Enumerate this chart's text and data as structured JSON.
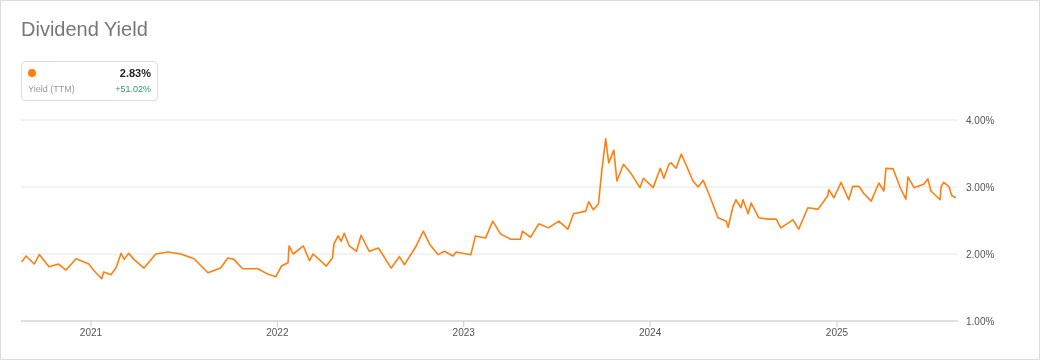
{
  "chart_data": {
    "type": "line",
    "title": "Dividend Yield",
    "annotations": [
      "2.83%",
      "Yield (TTM)",
      "+51.02%"
    ],
    "x": [
      "2020-08-18",
      "2020-08-27",
      "2020-09-12",
      "2020-09-22",
      "2020-10-11",
      "2020-10-30",
      "2020-11-13",
      "2020-12-03",
      "2020-12-28",
      "2021-01-07",
      "2021-01-22",
      "2021-01-26",
      "2021-02-09",
      "2021-02-19",
      "2021-03-01",
      "2021-03-07",
      "2021-03-16",
      "2021-03-26",
      "2021-04-15",
      "2021-05-08",
      "2021-06-01",
      "2021-06-26",
      "2021-07-22",
      "2021-08-18",
      "2021-09-12",
      "2021-09-26",
      "2021-10-08",
      "2021-10-25",
      "2021-11-24",
      "2021-12-13",
      "2021-12-29",
      "2022-01-09",
      "2022-01-22",
      "2022-01-24",
      "2022-02-01",
      "2022-02-21",
      "2022-03-05",
      "2022-03-12",
      "2022-04-07",
      "2022-04-19",
      "2022-04-22",
      "2022-04-30",
      "2022-05-06",
      "2022-05-12",
      "2022-05-22",
      "2022-06-05",
      "2022-06-14",
      "2022-06-30",
      "2022-07-18",
      "2022-08-12",
      "2022-08-28",
      "2022-09-07",
      "2022-09-30",
      "2022-10-14",
      "2022-10-26",
      "2022-11-12",
      "2022-11-24",
      "2022-12-11",
      "2022-12-17",
      "2023-01-15",
      "2023-01-24",
      "2023-02-13",
      "2023-02-27",
      "2023-03-14",
      "2023-04-03",
      "2023-04-22",
      "2023-04-26",
      "2023-05-12",
      "2023-05-28",
      "2023-06-16",
      "2023-07-06",
      "2023-07-24",
      "2023-08-04",
      "2023-08-28",
      "2023-09-03",
      "2023-09-12",
      "2023-09-22",
      "2023-09-28",
      "2023-10-06",
      "2023-10-12",
      "2023-10-22",
      "2023-10-28",
      "2023-11-10",
      "2023-11-24",
      "2023-12-12",
      "2023-12-19",
      "2024-01-07",
      "2024-01-21",
      "2024-01-28",
      "2024-02-07",
      "2024-02-11",
      "2024-02-21",
      "2024-03-02",
      "2024-03-11",
      "2024-03-25",
      "2024-04-04",
      "2024-04-14",
      "2024-04-25",
      "2024-05-13",
      "2024-05-29",
      "2024-06-02",
      "2024-06-11",
      "2024-06-17",
      "2024-06-27",
      "2024-07-01",
      "2024-07-11",
      "2024-07-17",
      "2024-08-01",
      "2024-08-19",
      "2024-09-04",
      "2024-09-13",
      "2024-10-07",
      "2024-10-18",
      "2024-11-05",
      "2024-11-25",
      "2024-12-14",
      "2024-12-16",
      "2024-12-26",
      "2025-01-09",
      "2025-01-24",
      "2025-02-01",
      "2025-02-13",
      "2025-02-23",
      "2025-03-09",
      "2025-03-24",
      "2025-04-03",
      "2025-04-07",
      "2025-04-21",
      "2025-05-06",
      "2025-05-16",
      "2025-05-20",
      "2025-06-01",
      "2025-06-20",
      "2025-06-28",
      "2025-07-04",
      "2025-07-22",
      "2025-07-24",
      "2025-07-29",
      "2025-08-08",
      "2025-08-14",
      "2025-08-22"
    ],
    "series": [
      {
        "color": "#ff7f0e",
        "values": [
          1.88,
          1.97,
          1.85,
          1.99,
          1.81,
          1.85,
          1.76,
          1.93,
          1.85,
          1.75,
          1.63,
          1.73,
          1.69,
          1.79,
          2.01,
          1.92,
          2.01,
          1.92,
          1.79,
          2.0,
          2.03,
          2.0,
          1.93,
          1.72,
          1.79,
          1.94,
          1.92,
          1.78,
          1.78,
          1.7,
          1.66,
          1.82,
          1.87,
          2.12,
          2.0,
          2.12,
          1.9,
          2.0,
          1.82,
          1.94,
          2.15,
          2.27,
          2.19,
          2.31,
          2.12,
          2.04,
          2.28,
          2.04,
          2.09,
          1.79,
          1.96,
          1.84,
          2.12,
          2.34,
          2.15,
          1.99,
          2.04,
          1.97,
          2.03,
          1.99,
          2.27,
          2.24,
          2.49,
          2.3,
          2.22,
          2.22,
          2.34,
          2.25,
          2.45,
          2.39,
          2.49,
          2.37,
          2.6,
          2.64,
          2.78,
          2.66,
          2.75,
          3.21,
          3.72,
          3.36,
          3.55,
          3.09,
          3.34,
          3.21,
          2.99,
          3.13,
          2.99,
          3.28,
          3.13,
          3.34,
          3.36,
          3.28,
          3.49,
          3.34,
          3.09,
          3.0,
          3.1,
          2.9,
          2.54,
          2.49,
          2.4,
          2.7,
          2.81,
          2.69,
          2.81,
          2.6,
          2.76,
          2.54,
          2.52,
          2.52,
          2.39,
          2.51,
          2.37,
          2.69,
          2.67,
          2.87,
          2.96,
          2.84,
          3.07,
          2.81,
          3.01,
          3.01,
          2.9,
          2.79,
          3.06,
          2.94,
          3.28,
          3.27,
          2.97,
          2.82,
          3.15,
          2.99,
          3.04,
          3.12,
          2.94,
          2.81,
          3.01,
          3.07,
          3.01,
          2.87,
          2.84
        ]
      }
    ],
    "xlim": [
      "2020-08-17",
      "2025-08-26"
    ],
    "xticks": [
      "2021",
      "2022",
      "2023",
      "2024",
      "2025"
    ],
    "ylim": [
      1,
      4
    ],
    "yticks": [
      {
        "value": 1,
        "label": "1.00%"
      },
      {
        "value": 2,
        "label": "2.00%"
      },
      {
        "value": 3,
        "label": "3.00%"
      },
      {
        "value": 4,
        "label": "4.00%"
      }
    ],
    "grid": "y",
    "marker": "none",
    "line_style": "solid"
  }
}
